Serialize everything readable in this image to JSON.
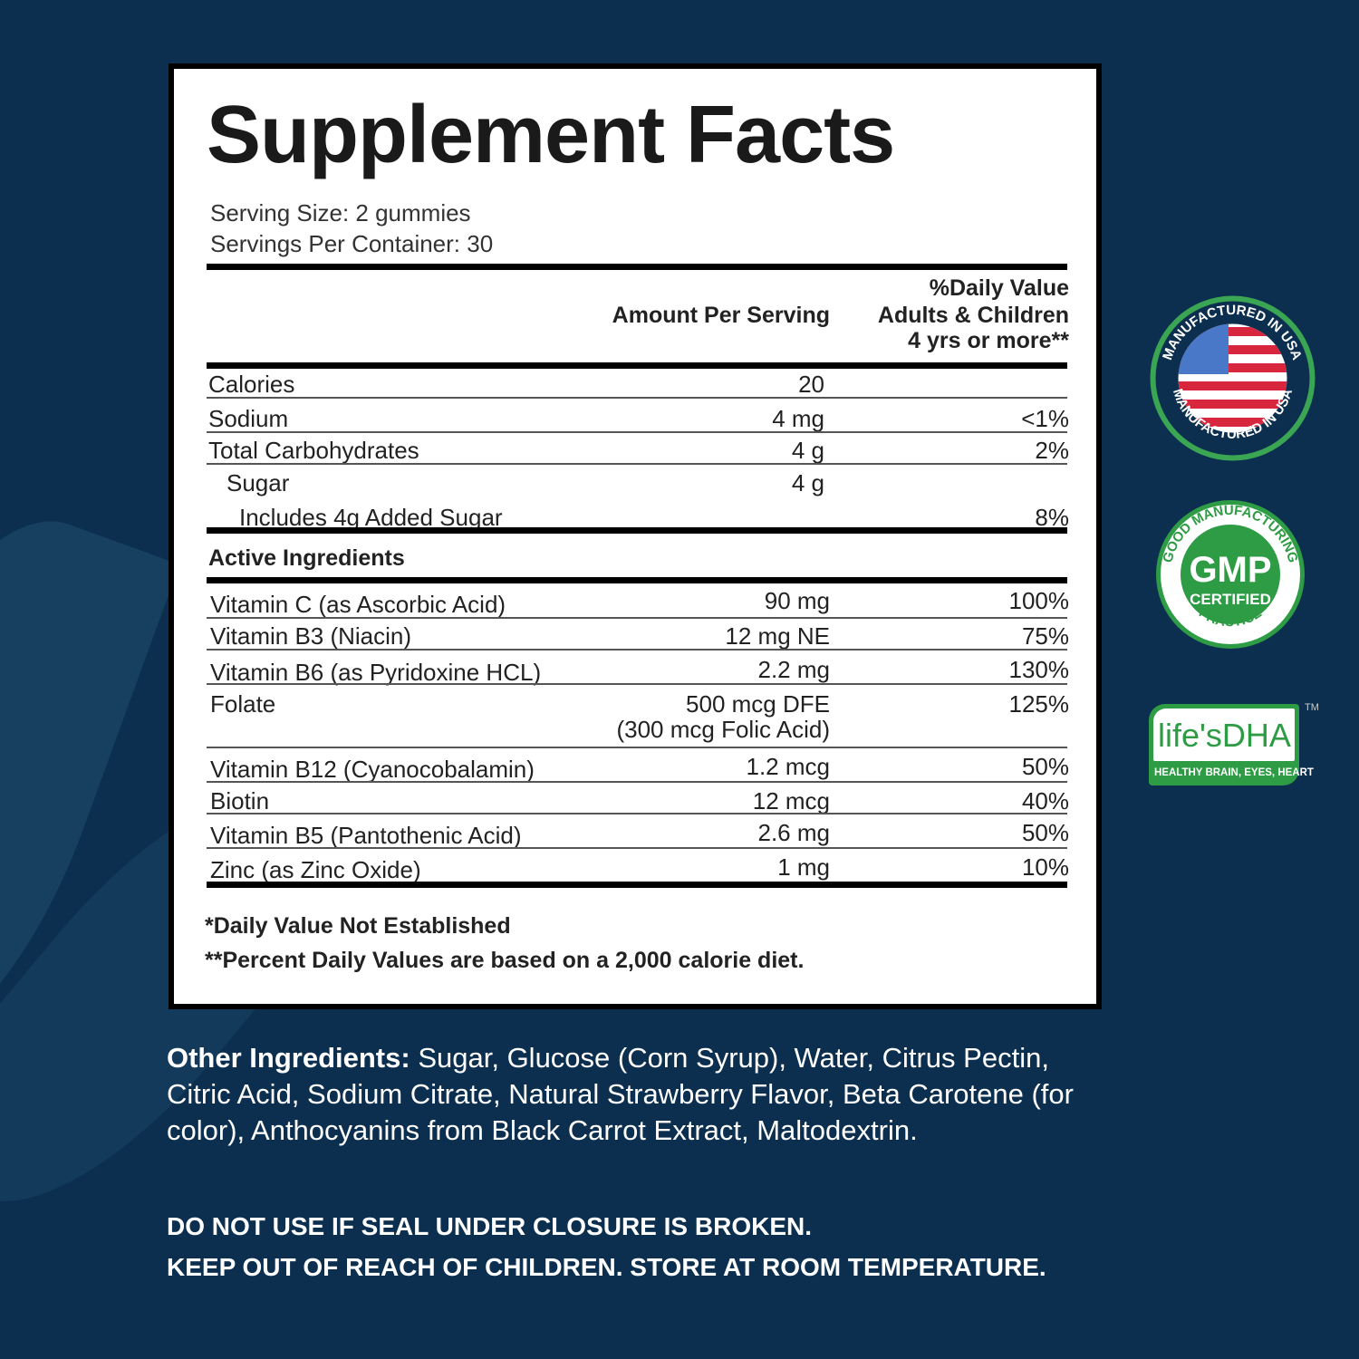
{
  "title": "Supplement Facts",
  "serving_size": "Serving Size: 2 gummies",
  "servings_per_container": "Servings Per Container: 30",
  "header": {
    "amount": "Amount Per Serving",
    "dv_line1": "%Daily Value",
    "dv_line2": "Adults & Children",
    "dv_line3": "4 yrs or more**"
  },
  "nutrition_rows": [
    {
      "name": "Calories",
      "amount": "20",
      "dv": ""
    },
    {
      "name": "Sodium",
      "amount": "4 mg",
      "dv": "<1%"
    },
    {
      "name": "Total Carbohydrates",
      "amount": "4 g",
      "dv": "2%"
    },
    {
      "name": "Sugar",
      "amount": "4 g",
      "dv": ""
    },
    {
      "name": "Includes 4g Added Sugar",
      "amount": "",
      "dv": "8%"
    }
  ],
  "active_heading": "Active Ingredients",
  "active_rows": [
    {
      "name": "Vitamin C (as Ascorbic Acid)",
      "amount": "90 mg",
      "amount2": "",
      "dv": "100%"
    },
    {
      "name": "Vitamin B3 (Niacin)",
      "amount": "12 mg NE",
      "amount2": "",
      "dv": "75%"
    },
    {
      "name": "Vitamin B6 (as Pyridoxine HCL)",
      "amount": "2.2 mg",
      "amount2": "",
      "dv": "130%"
    },
    {
      "name": "Folate",
      "amount": "500 mcg DFE",
      "amount2": "(300 mcg Folic Acid)",
      "dv": "125%"
    },
    {
      "name": "Vitamin B12 (Cyanocobalamin)",
      "amount": "1.2 mcg",
      "amount2": "",
      "dv": "50%"
    },
    {
      "name": "Biotin",
      "amount": "12 mcg",
      "amount2": "",
      "dv": "40%"
    },
    {
      "name": "Vitamin B5 (Pantothenic Acid)",
      "amount": "2.6 mg",
      "amount2": "",
      "dv": "50%"
    },
    {
      "name": "Zinc (as Zinc Oxide)",
      "amount": "1 mg",
      "amount2": "",
      "dv": "10%"
    }
  ],
  "footnotes": [
    "*Daily Value Not Established",
    "**Percent Daily Values are based on a 2,000 calorie diet."
  ],
  "other_ingredients": {
    "label": "Other Ingredients:",
    "text": "Sugar, Glucose (Corn Syrup), Water, Citrus Pectin, Citric Acid, Sodium Citrate, Natural Strawberry Flavor, Beta Carotene (for color), Anthocyanins from Black Carrot Extract, Maltodextrin."
  },
  "warnings": [
    "DO NOT USE IF SEAL UNDER CLOSURE IS BROKEN.",
    "KEEP OUT OF REACH OF CHILDREN. STORE AT ROOM TEMPERATURE."
  ],
  "badges": {
    "usa": "MANUFACTURED IN USA",
    "gmp_top": "GOOD MANUFACTURING",
    "gmp_main": "GMP",
    "gmp_sub": "CERTIFIED",
    "gmp_bottom": "PRACTICE",
    "dha_logo": "life'sDHA",
    "dha_tm": "TM",
    "dha_tagline": "HEALTHY BRAIN, EYES, HEART"
  },
  "colors": {
    "background": "#0c2f4f",
    "badge_green": "#2e9b45"
  }
}
